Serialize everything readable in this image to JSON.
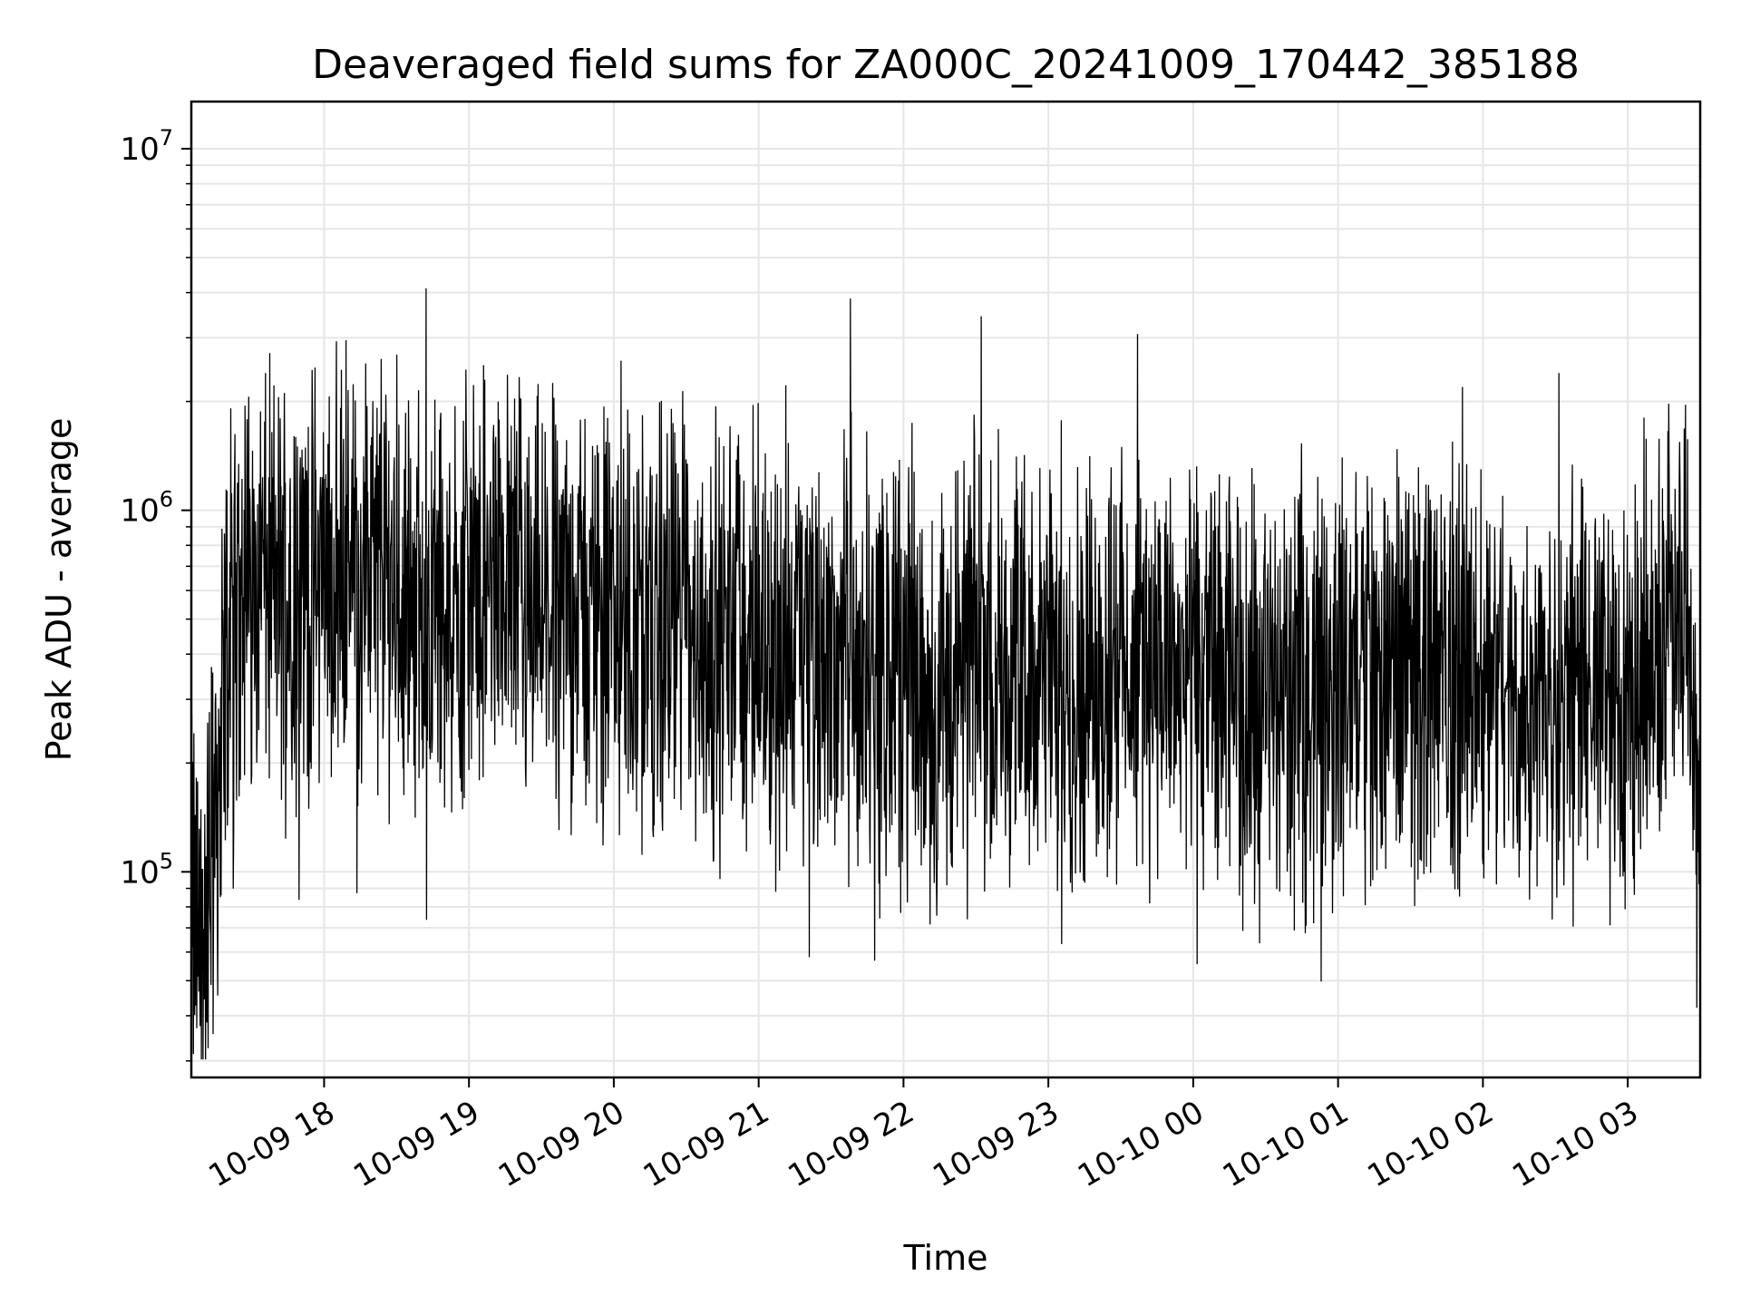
{
  "chart_data": {
    "type": "line",
    "title": "Deaveraged field sums for ZA000C_20241009_170442_385188",
    "xlabel": "Time",
    "ylabel": "Peak ADU - average",
    "yscale": "log",
    "ylim": [
      27000,
      13500000
    ],
    "xlim": [
      "2024-10-09 17:05",
      "2024-10-10 03:30"
    ],
    "grid": true,
    "line_color": "#000000",
    "x_ticks": [
      {
        "value": "2024-10-09 18:00",
        "label": "10-09 18"
      },
      {
        "value": "2024-10-09 19:00",
        "label": "10-09 19"
      },
      {
        "value": "2024-10-09 20:00",
        "label": "10-09 20"
      },
      {
        "value": "2024-10-09 21:00",
        "label": "10-09 21"
      },
      {
        "value": "2024-10-09 22:00",
        "label": "10-09 22"
      },
      {
        "value": "2024-10-09 23:00",
        "label": "10-09 23"
      },
      {
        "value": "2024-10-10 00:00",
        "label": "10-10 00"
      },
      {
        "value": "2024-10-10 01:00",
        "label": "10-10 01"
      },
      {
        "value": "2024-10-10 02:00",
        "label": "10-10 02"
      },
      {
        "value": "2024-10-10 03:00",
        "label": "10-10 03"
      }
    ],
    "y_ticks": [
      {
        "value": 100000,
        "base": "10",
        "exp": "5"
      },
      {
        "value": 1000000,
        "base": "10",
        "exp": "6"
      },
      {
        "value": 10000000,
        "base": "10",
        "exp": "7"
      }
    ],
    "series": [
      {
        "x": [
          "2024-10-09 17:05",
          "2024-10-09 17:10",
          "2024-10-09 17:15",
          "2024-10-09 17:20",
          "2024-10-09 17:30",
          "2024-10-09 17:45",
          "2024-10-09 18:00",
          "2024-10-09 18:15",
          "2024-10-09 18:30",
          "2024-10-09 18:45",
          "2024-10-09 19:00",
          "2024-10-09 19:15",
          "2024-10-09 19:30",
          "2024-10-09 19:45",
          "2024-10-09 20:00",
          "2024-10-09 20:15",
          "2024-10-09 20:30",
          "2024-10-09 20:45",
          "2024-10-09 21:00",
          "2024-10-09 21:15",
          "2024-10-09 21:30",
          "2024-10-09 21:45",
          "2024-10-09 22:00",
          "2024-10-09 22:15",
          "2024-10-09 22:30",
          "2024-10-09 22:45",
          "2024-10-09 23:00",
          "2024-10-09 23:15",
          "2024-10-09 23:30",
          "2024-10-09 23:45",
          "2024-10-10 00:00",
          "2024-10-10 00:15",
          "2024-10-10 00:30",
          "2024-10-10 00:45",
          "2024-10-10 01:00",
          "2024-10-10 01:15",
          "2024-10-10 01:30",
          "2024-10-10 01:45",
          "2024-10-10 02:00",
          "2024-10-10 02:15",
          "2024-10-10 02:30",
          "2024-10-10 02:45",
          "2024-10-10 03:00",
          "2024-10-10 03:15",
          "2024-10-10 03:25",
          "2024-10-10 03:30"
        ],
        "y": [
          80000,
          60000,
          150000,
          450000,
          650000,
          600000,
          650000,
          700000,
          650000,
          500000,
          600000,
          650000,
          550000,
          550000,
          500000,
          450000,
          500000,
          420000,
          420000,
          400000,
          400000,
          380000,
          350000,
          320000,
          420000,
          380000,
          380000,
          350000,
          420000,
          380000,
          350000,
          330000,
          300000,
          320000,
          380000,
          350000,
          400000,
          320000,
          350000,
          320000,
          300000,
          320000,
          300000,
          420000,
          600000,
          100000
        ]
      }
    ]
  }
}
